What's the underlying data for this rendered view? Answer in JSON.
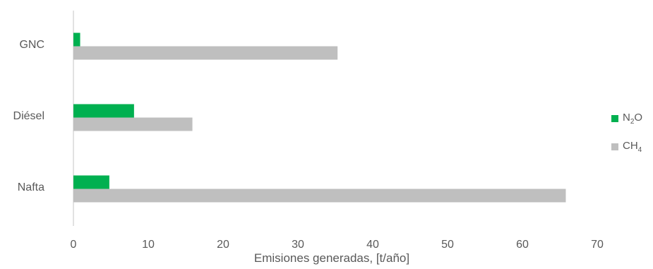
{
  "chart_data": {
    "type": "bar",
    "orientation": "horizontal",
    "categories": [
      "GNC",
      "Diésel",
      "Nafta"
    ],
    "series": [
      {
        "name": "N2O",
        "label_main": "N",
        "label_sub": "2",
        "label_tail": "O",
        "color": "#00b050",
        "values": [
          0.9,
          8.1,
          4.8
        ]
      },
      {
        "name": "CH4",
        "label_main": "CH",
        "label_sub": "4",
        "label_tail": "",
        "color": "#bfbfbf",
        "values": [
          35.3,
          15.9,
          65.8
        ]
      }
    ],
    "xlabel": "Emisiones generadas, [t/año]",
    "xlim": [
      0,
      70
    ],
    "xticks": [
      0,
      10,
      20,
      30,
      40,
      50,
      60,
      70
    ],
    "grid": false,
    "legend_position": "right"
  }
}
